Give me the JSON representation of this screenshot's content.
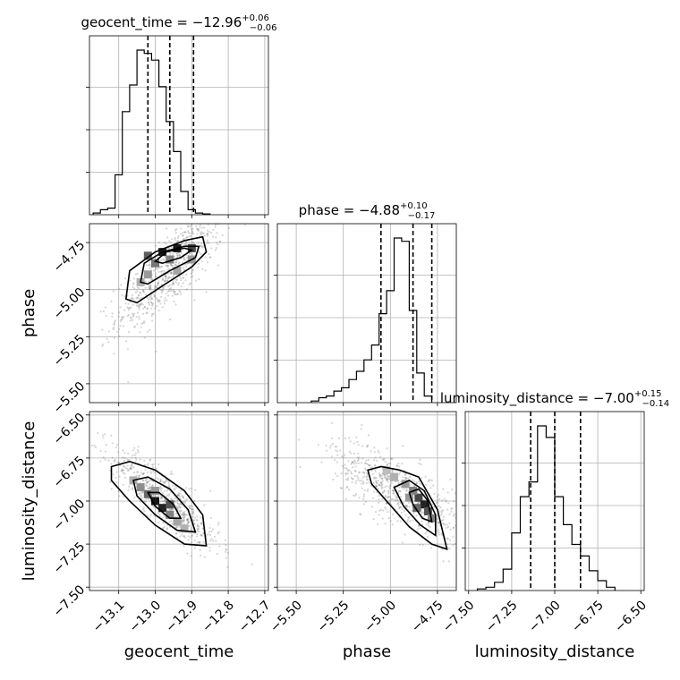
{
  "chart_data": {
    "type": "corner",
    "parameters": [
      {
        "name": "geocent_time",
        "label": "geocent_time",
        "median": "−12.96",
        "plus": "+0.06",
        "minus": "−0.06",
        "range": [
          -13.18,
          -12.69
        ],
        "ticks": [
          -13.1,
          -13.0,
          -12.9,
          -12.8,
          -12.7
        ],
        "tick_labels": [
          "−13.1",
          "−13.0",
          "−12.9",
          "−12.8",
          "−12.7"
        ],
        "quantiles": [
          -13.02,
          -12.96,
          -12.895
        ],
        "hist_edges_start": -13.17,
        "hist_bin_width": 0.02,
        "hist_counts": [
          1,
          3,
          4,
          24,
          62,
          78,
          99,
          97,
          93,
          77,
          56,
          38,
          14,
          3,
          1,
          0.5
        ]
      },
      {
        "name": "phase",
        "label": "phase",
        "median": "−4.88",
        "plus": "+0.10",
        "minus": "−0.17",
        "range": [
          -5.6,
          -4.65
        ],
        "ticks": [
          -5.5,
          -5.25,
          -5.0,
          -4.75
        ],
        "tick_labels": [
          "−5.50",
          "−5.25",
          "−5.00",
          "−4.75"
        ],
        "quantiles": [
          -5.05,
          -4.88,
          -4.78
        ],
        "hist_edges_start": -5.42,
        "hist_bin_width": 0.04,
        "hist_counts": [
          1,
          3,
          4,
          7,
          9,
          14,
          19,
          26,
          35,
          54,
          68,
          100,
          98,
          56,
          18,
          4
        ]
      },
      {
        "name": "luminosity_distance",
        "label": "luminosity_distance",
        "median": "−7.00",
        "plus": "+0.15",
        "minus": "−0.14",
        "range": [
          -7.52,
          -6.48
        ],
        "ticks": [
          -7.5,
          -7.25,
          -7.0,
          -6.75,
          -6.5
        ],
        "tick_labels": [
          "−7.50",
          "−7.25",
          "−7.00",
          "−6.75",
          "−6.50"
        ],
        "quantiles": [
          -7.14,
          -7.0,
          -6.85
        ],
        "hist_edges_start": -7.45,
        "hist_bin_width": 0.05,
        "hist_counts": [
          1,
          2,
          5,
          13,
          35,
          57,
          66,
          100,
          93,
          57,
          40,
          28,
          21,
          12,
          6,
          2
        ]
      }
    ],
    "pairs": [
      {
        "x": "geocent_time",
        "y": "phase",
        "mean": [
          -12.96,
          -4.9
        ],
        "sd": [
          0.07,
          0.15
        ],
        "rho": 0.8,
        "scatter_count": 700,
        "density": [
          [
            -13.02,
            -4.82,
            0.6
          ],
          [
            -12.98,
            -4.8,
            0.85
          ],
          [
            -12.94,
            -4.78,
            0.9
          ],
          [
            -12.9,
            -4.78,
            0.7
          ],
          [
            -13.0,
            -4.86,
            0.5
          ],
          [
            -12.96,
            -4.84,
            0.45
          ],
          [
            -13.02,
            -4.92,
            0.35
          ],
          [
            -12.94,
            -4.9,
            0.3
          ],
          [
            -13.04,
            -4.96,
            0.25
          ],
          [
            -12.9,
            -4.84,
            0.35
          ]
        ],
        "contours": [
          [
            [
              -13.08,
              -5.05
            ],
            [
              -13.07,
              -4.9
            ],
            [
              -13.0,
              -4.8
            ],
            [
              -12.92,
              -4.74
            ],
            [
              -12.87,
              -4.72
            ],
            [
              -12.86,
              -4.8
            ],
            [
              -12.9,
              -4.88
            ],
            [
              -12.98,
              -4.98
            ],
            [
              -13.05,
              -5.07
            ]
          ],
          [
            [
              -13.04,
              -4.96
            ],
            [
              -13.03,
              -4.86
            ],
            [
              -12.98,
              -4.8
            ],
            [
              -12.92,
              -4.77
            ],
            [
              -12.88,
              -4.77
            ],
            [
              -12.89,
              -4.83
            ],
            [
              -12.96,
              -4.9
            ],
            [
              -13.02,
              -4.97
            ]
          ],
          [
            [
              -13.0,
              -4.85
            ],
            [
              -12.97,
              -4.8
            ],
            [
              -12.92,
              -4.78
            ],
            [
              -12.9,
              -4.79
            ],
            [
              -12.93,
              -4.83
            ],
            [
              -12.98,
              -4.86
            ]
          ]
        ]
      },
      {
        "x": "geocent_time",
        "y": "luminosity_distance",
        "mean": [
          -12.97,
          -7.0
        ],
        "sd": [
          0.07,
          0.14
        ],
        "rho": -0.85,
        "scatter_count": 700,
        "density": [
          [
            -13.02,
            -6.96,
            0.55
          ],
          [
            -13.0,
            -7.0,
            0.9
          ],
          [
            -12.98,
            -7.04,
            0.85
          ],
          [
            -12.96,
            -7.02,
            0.65
          ],
          [
            -13.04,
            -6.92,
            0.4
          ],
          [
            -12.96,
            -7.08,
            0.45
          ],
          [
            -12.94,
            -7.12,
            0.3
          ],
          [
            -13.06,
            -6.88,
            0.25
          ],
          [
            -12.92,
            -7.16,
            0.25
          ],
          [
            -13.0,
            -6.94,
            0.35
          ]
        ],
        "contours": [
          [
            [
              -13.12,
              -6.8
            ],
            [
              -13.07,
              -6.77
            ],
            [
              -13.0,
              -6.82
            ],
            [
              -12.92,
              -6.94
            ],
            [
              -12.87,
              -7.08
            ],
            [
              -12.86,
              -7.26
            ],
            [
              -12.92,
              -7.25
            ],
            [
              -13.0,
              -7.14
            ],
            [
              -13.07,
              -7.0
            ],
            [
              -13.12,
              -6.88
            ]
          ],
          [
            [
              -13.06,
              -6.88
            ],
            [
              -13.02,
              -6.86
            ],
            [
              -12.96,
              -6.93
            ],
            [
              -12.91,
              -7.05
            ],
            [
              -12.89,
              -7.18
            ],
            [
              -12.94,
              -7.17
            ],
            [
              -13.0,
              -7.08
            ],
            [
              -13.05,
              -6.97
            ]
          ],
          [
            [
              -13.02,
              -6.95
            ],
            [
              -12.99,
              -6.95
            ],
            [
              -12.95,
              -7.02
            ],
            [
              -12.93,
              -7.1
            ],
            [
              -12.96,
              -7.1
            ],
            [
              -13.0,
              -7.03
            ]
          ]
        ]
      },
      {
        "x": "phase",
        "y": "luminosity_distance",
        "mean": [
          -4.95,
          -6.95
        ],
        "sd": [
          0.17,
          0.14
        ],
        "rho": -0.75,
        "scatter_count": 700,
        "density": [
          [
            -4.85,
            -6.98,
            0.7
          ],
          [
            -4.82,
            -7.02,
            0.85
          ],
          [
            -4.8,
            -7.06,
            0.65
          ],
          [
            -4.88,
            -6.94,
            0.45
          ],
          [
            -4.92,
            -6.9,
            0.35
          ],
          [
            -4.78,
            -7.1,
            0.45
          ],
          [
            -4.98,
            -6.86,
            0.25
          ],
          [
            -5.02,
            -6.82,
            0.2
          ],
          [
            -4.86,
            -7.04,
            0.55
          ],
          [
            -4.9,
            -6.98,
            0.35
          ]
        ],
        "contours": [
          [
            [
              -5.12,
              -6.82
            ],
            [
              -5.05,
              -6.8
            ],
            [
              -4.95,
              -6.82
            ],
            [
              -4.85,
              -6.86
            ],
            [
              -4.75,
              -7.05
            ],
            [
              -4.7,
              -7.28
            ],
            [
              -4.78,
              -7.25
            ],
            [
              -4.9,
              -7.15
            ],
            [
              -5.02,
              -7.0
            ],
            [
              -5.1,
              -6.9
            ]
          ],
          [
            [
              -4.98,
              -6.92
            ],
            [
              -4.9,
              -6.88
            ],
            [
              -4.82,
              -6.94
            ],
            [
              -4.76,
              -7.08
            ],
            [
              -4.76,
              -7.2
            ],
            [
              -4.84,
              -7.14
            ],
            [
              -4.93,
              -7.03
            ]
          ],
          [
            [
              -4.9,
              -6.95
            ],
            [
              -4.85,
              -6.93
            ],
            [
              -4.8,
              -7.0
            ],
            [
              -4.78,
              -7.12
            ],
            [
              -4.83,
              -7.1
            ],
            [
              -4.88,
              -7.02
            ]
          ]
        ]
      }
    ]
  }
}
